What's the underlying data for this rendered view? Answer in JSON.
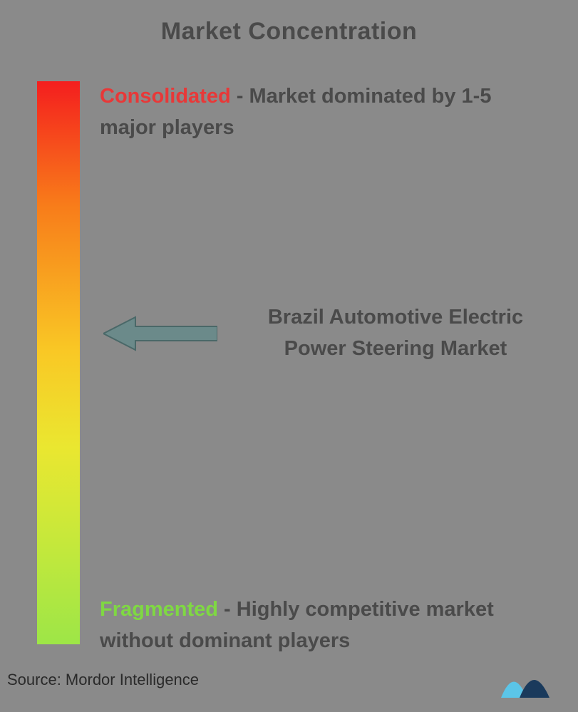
{
  "title": "Market Concentration",
  "gradient": {
    "colors": [
      "#f41e1e",
      "#f87c1a",
      "#f9c825",
      "#eae730",
      "#c5e83b",
      "#9de647"
    ],
    "stops": [
      0,
      22,
      48,
      65,
      82,
      100
    ]
  },
  "top_label": {
    "keyword": "Consolidated",
    "desc": " - Market dominated by 1-5 major players"
  },
  "middle": {
    "market_name": "Brazil Automotive Electric Power Steering Market",
    "arrow_color_fill": "#6b8a8a",
    "arrow_color_stroke": "#4a6868",
    "arrow_position_pct": 42
  },
  "bottom_label": {
    "keyword": "Fragmented",
    "desc": " - Highly competitive market without dominant players"
  },
  "source": "Source: Mordor Intelligence",
  "logo_colors": {
    "light": "#5bc5e8",
    "dark": "#1a3a5c"
  }
}
